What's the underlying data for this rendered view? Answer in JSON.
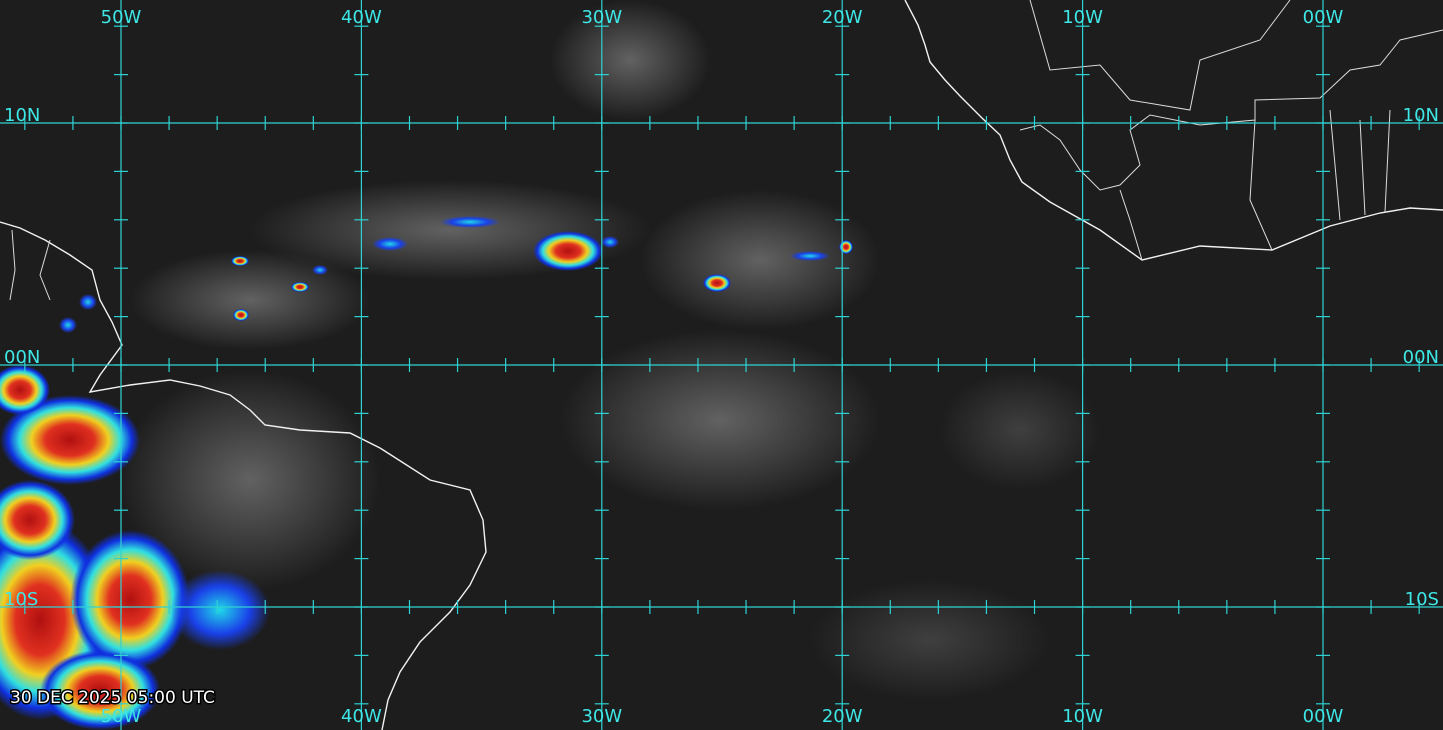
{
  "map": {
    "longitude_labels": [
      "50W",
      "40W",
      "30W",
      "20W",
      "10W",
      "00W"
    ],
    "latitude_labels": [
      "10N",
      "00N",
      "10S"
    ],
    "timestamp": "30 DEC 2025 05:00 UTC"
  }
}
